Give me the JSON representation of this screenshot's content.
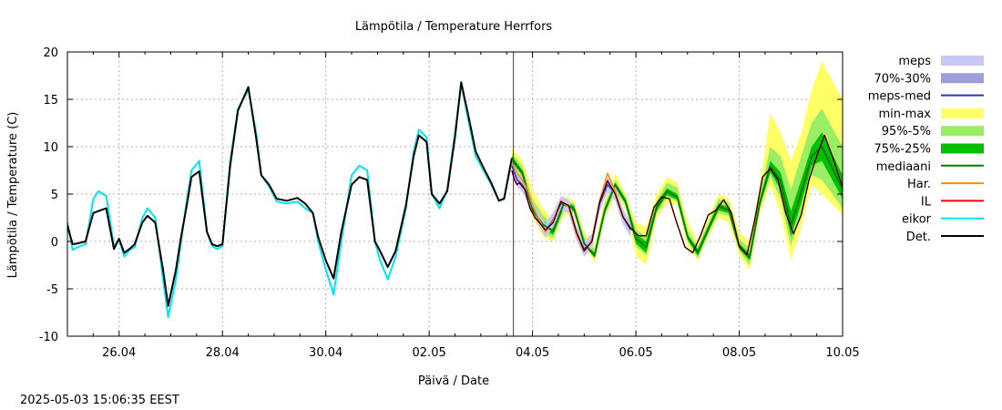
{
  "chart_data": {
    "type": "line",
    "title": "Lämpötila / Temperature   Herrfors",
    "xlabel": "Päivä / Date",
    "ylabel": "Lämpötila / Temperature (C)",
    "timestamp": "2025-05-03 15:06:35 EEST",
    "x_unit": "day of month (April 25 = 25, May 1 = 31)",
    "xlim": [
      25,
      40
    ],
    "ylim": [
      -10,
      20
    ],
    "y_ticks": [
      -10,
      -5,
      0,
      5,
      10,
      15,
      20
    ],
    "x_ticks": [
      {
        "x": 26,
        "label": "26.04"
      },
      {
        "x": 28,
        "label": "28.04"
      },
      {
        "x": 30,
        "label": "30.04"
      },
      {
        "x": 32,
        "label": "02.05"
      },
      {
        "x": 34,
        "label": "04.05"
      },
      {
        "x": 36,
        "label": "06.05"
      },
      {
        "x": 38,
        "label": "08.05"
      },
      {
        "x": 40,
        "label": "10.05"
      }
    ],
    "grid": true,
    "legend_position": "right",
    "forecast_start_x": 33.63,
    "legend": [
      {
        "label": "meps",
        "kind": "band",
        "color": "#c8c8f5"
      },
      {
        "label": "70%-30%",
        "kind": "band",
        "color": "#9e9edc"
      },
      {
        "label": "meps-med",
        "kind": "line",
        "color": "#3030d0"
      },
      {
        "label": "min-max",
        "kind": "band",
        "color": "#ffff66"
      },
      {
        "label": "95%-5%",
        "kind": "band",
        "color": "#99ee66"
      },
      {
        "label": "75%-25%",
        "kind": "band",
        "color": "#00c000"
      },
      {
        "label": "mediaani",
        "kind": "line",
        "color": "#008000"
      },
      {
        "label": "Har.",
        "kind": "line",
        "color": "#ff8c00"
      },
      {
        "label": "IL",
        "kind": "line",
        "color": "#ff0000"
      },
      {
        "label": "eikor",
        "kind": "line",
        "color": "#00e5ee"
      },
      {
        "label": "Det.",
        "kind": "line",
        "color": "#000000"
      }
    ],
    "series": {
      "eikor": {
        "x": [
          25.0,
          25.1,
          25.2,
          25.35,
          25.5,
          25.6,
          25.75,
          25.9,
          26.0,
          26.1,
          26.2,
          26.3,
          26.45,
          26.55,
          26.7,
          26.85,
          26.95,
          27.1,
          27.2,
          27.3,
          27.4,
          27.55,
          27.7,
          27.8,
          27.9,
          28.0,
          28.15,
          28.3,
          28.5,
          28.65,
          28.75,
          28.9,
          29.05,
          29.25,
          29.45,
          29.6,
          29.75,
          29.85,
          30.0,
          30.15,
          30.3,
          30.5,
          30.65,
          30.8,
          30.95,
          31.05,
          31.2,
          31.35,
          31.55,
          31.7,
          31.8,
          31.95,
          32.05,
          32.2,
          32.35,
          32.5,
          32.62,
          32.75,
          32.9,
          33.05,
          33.2,
          33.35,
          33.45,
          33.6
        ],
        "y": [
          2.0,
          -0.9,
          -0.6,
          -0.3,
          4.5,
          5.3,
          4.8,
          -0.5,
          0.2,
          -1.6,
          -0.9,
          -0.6,
          2.5,
          3.5,
          2.5,
          -4.0,
          -8.0,
          -4.0,
          0.0,
          4.0,
          7.5,
          8.5,
          1.0,
          -0.5,
          -0.8,
          -0.5,
          8.5,
          14.0,
          16.0,
          11.5,
          7.0,
          5.8,
          4.2,
          4.0,
          4.2,
          3.5,
          3.0,
          0.0,
          -3.0,
          -5.6,
          0.0,
          7.0,
          8.0,
          7.5,
          0.0,
          -2.0,
          -4.0,
          -1.6,
          3.5,
          9.5,
          11.8,
          11.0,
          5.0,
          3.5,
          5.5,
          11.5,
          16.6,
          13.0,
          9.0,
          7.5,
          6.0,
          4.3,
          4.6,
          8.5
        ]
      },
      "det": {
        "x": [
          25.0,
          25.1,
          25.2,
          25.35,
          25.5,
          25.6,
          25.75,
          25.9,
          26.0,
          26.1,
          26.2,
          26.3,
          26.45,
          26.55,
          26.7,
          26.85,
          26.95,
          27.1,
          27.2,
          27.3,
          27.4,
          27.55,
          27.7,
          27.8,
          27.9,
          28.0,
          28.15,
          28.3,
          28.5,
          28.65,
          28.75,
          28.9,
          29.05,
          29.25,
          29.45,
          29.6,
          29.75,
          29.85,
          30.0,
          30.15,
          30.3,
          30.5,
          30.65,
          30.8,
          30.95,
          31.05,
          31.2,
          31.35,
          31.55,
          31.7,
          31.8,
          31.95,
          32.05,
          32.2,
          32.35,
          32.5,
          32.62,
          32.75,
          32.9,
          33.05,
          33.2,
          33.35,
          33.45,
          33.6
        ],
        "y": [
          1.7,
          -0.3,
          -0.2,
          0.0,
          3.0,
          3.2,
          3.5,
          -0.8,
          0.3,
          -1.2,
          -0.8,
          -0.3,
          2.0,
          2.7,
          2.0,
          -3.0,
          -6.8,
          -3.0,
          0.5,
          3.5,
          6.8,
          7.4,
          1.0,
          -0.3,
          -0.5,
          -0.3,
          8.0,
          13.8,
          16.3,
          11.0,
          7.0,
          6.0,
          4.5,
          4.3,
          4.6,
          4.0,
          3.0,
          0.5,
          -2.0,
          -3.9,
          1.0,
          6.0,
          6.8,
          6.5,
          0.0,
          -1.0,
          -2.7,
          -1.0,
          3.8,
          9.0,
          11.2,
          10.5,
          5.0,
          4.0,
          5.3,
          11.0,
          16.8,
          13.5,
          9.5,
          7.8,
          6.2,
          4.3,
          4.5,
          8.8
        ]
      },
      "minmax_hi": [
        9.8,
        8.6,
        5.5,
        3.5,
        2.2,
        4.8,
        4.3,
        1.0,
        -0.3,
        4.5,
        7.2,
        5.0,
        2.0,
        1.5,
        5.0,
        6.8,
        6.2,
        2.0,
        0.0,
        2.5,
        5.0,
        4.5,
        1.0,
        0.0,
        6.0,
        13.5,
        11.5,
        8.5,
        11.5,
        16.0,
        19.0,
        15.0
      ],
      "minmax_lo": [
        7.5,
        6.5,
        2.5,
        0.5,
        0.0,
        2.8,
        2.8,
        -0.5,
        -2.2,
        2.5,
        4.8,
        3.5,
        -1.5,
        -2.5,
        2.5,
        4.0,
        3.8,
        -0.5,
        -2.0,
        0.5,
        2.5,
        2.0,
        -1.5,
        -3.0,
        3.0,
        6.0,
        3.0,
        -2.0,
        1.5,
        6.0,
        5.0,
        2.8
      ],
      "p95_hi": [
        9.3,
        8.0,
        4.5,
        2.8,
        1.8,
        4.5,
        4.0,
        0.5,
        -0.8,
        4.0,
        6.5,
        4.7,
        1.3,
        0.5,
        4.3,
        6.2,
        5.7,
        1.2,
        -0.5,
        2.0,
        4.5,
        4.1,
        0.3,
        -0.8,
        5.0,
        10.0,
        9.0,
        5.5,
        9.0,
        12.5,
        14.0,
        10.0
      ],
      "p95_lo": [
        8.0,
        6.8,
        2.8,
        1.0,
        0.3,
        3.2,
        3.0,
        -0.2,
        -1.8,
        2.8,
        5.3,
        3.8,
        -0.5,
        -1.5,
        3.0,
        4.6,
        4.2,
        0.0,
        -1.8,
        0.8,
        3.0,
        2.7,
        -1.0,
        -2.5,
        3.5,
        6.8,
        4.5,
        -0.5,
        3.0,
        7.0,
        6.5,
        3.5
      ],
      "p75_hi": [
        9.0,
        7.5,
        3.8,
        2.2,
        1.5,
        4.2,
        3.8,
        0.0,
        -1.2,
        3.5,
        6.2,
        4.5,
        0.8,
        0.0,
        4.0,
        5.6,
        5.0,
        0.7,
        -0.8,
        1.6,
        4.0,
        3.6,
        -0.2,
        -1.3,
        4.5,
        8.5,
        7.3,
        3.2,
        6.5,
        10.0,
        11.5,
        7.0
      ],
      "p75_lo": [
        8.4,
        7.0,
        3.0,
        1.4,
        0.7,
        3.5,
        3.2,
        -0.4,
        -1.7,
        3.0,
        5.7,
        4.0,
        -0.2,
        -1.2,
        3.2,
        4.9,
        4.4,
        0.2,
        -1.5,
        1.0,
        3.3,
        3.0,
        -0.8,
        -2.0,
        3.8,
        7.3,
        5.5,
        0.5,
        4.0,
        8.0,
        8.5,
        4.5
      ],
      "mediaani": [
        8.7,
        7.3,
        3.3,
        1.8,
        1.1,
        3.9,
        3.5,
        -0.2,
        -1.5,
        3.3,
        6.0,
        4.2,
        0.3,
        -0.6,
        3.6,
        5.3,
        4.7,
        0.5,
        -1.2,
        1.3,
        3.7,
        3.3,
        -0.5,
        -1.7,
        4.1,
        7.9,
        6.4,
        1.7,
        5.2,
        9.0,
        10.0,
        5.5
      ],
      "il": {
        "x": [
          33.6,
          33.65,
          33.7,
          33.75,
          33.8,
          33.85,
          33.9,
          33.95,
          34.0,
          34.05,
          34.1,
          34.25,
          34.4,
          34.55,
          34.7,
          34.85,
          35.0,
          35.15,
          35.3,
          35.45,
          35.6,
          35.75,
          35.9,
          36.05,
          36.2,
          36.35,
          36.5,
          36.65,
          36.8,
          36.95,
          37.1,
          37.25,
          37.4,
          37.55,
          37.7,
          37.85,
          38.0,
          38.15,
          38.3,
          38.45,
          38.6,
          38.75,
          38.9,
          39.05,
          39.2,
          39.35,
          39.5,
          39.65,
          39.8,
          39.95,
          40.0
        ],
        "y": [
          7.5,
          6.5,
          6.0,
          6.2,
          5.8,
          5.5,
          4.5,
          3.5,
          3.0,
          2.5,
          2.2,
          1.2,
          2.0,
          4.2,
          3.8,
          1.0,
          -1.0,
          0.0,
          4.2,
          6.4,
          5.0,
          2.6,
          1.4,
          0.6,
          0.6,
          3.6,
          4.7,
          4.5,
          1.8,
          -0.6,
          -1.2,
          0.6,
          2.8,
          3.3,
          4.4,
          3.0,
          -0.5,
          -1.4,
          2.3,
          6.8,
          7.7,
          6.5,
          3.0,
          0.8,
          2.8,
          6.5,
          9.0,
          11.2,
          9.0,
          6.5,
          5.8
        ]
      },
      "har": {
        "x": [
          33.6,
          33.7,
          33.8,
          33.9,
          34.0,
          34.1,
          34.25,
          34.4,
          34.55,
          34.7,
          34.85,
          35.0,
          35.15,
          35.3,
          35.45,
          35.6,
          35.75
        ],
        "y": [
          8.3,
          7.2,
          6.5,
          5.5,
          3.8,
          2.6,
          1.0,
          2.2,
          4.3,
          3.6,
          0.8,
          -1.1,
          0.2,
          4.3,
          7.2,
          5.3,
          2.5
        ]
      },
      "meps_med": {
        "x": [
          33.6,
          33.7,
          33.8,
          33.9,
          34.0,
          34.1,
          34.25,
          34.4,
          34.55,
          34.7,
          34.85,
          35.0,
          35.15,
          35.3,
          35.45,
          35.6,
          35.75,
          35.9
        ],
        "y": [
          8.0,
          6.5,
          6.0,
          5.0,
          3.5,
          2.5,
          1.1,
          2.3,
          4.0,
          3.7,
          0.9,
          -0.8,
          0.0,
          4.0,
          6.0,
          5.1,
          2.6,
          1.2
        ]
      },
      "meps_band_hi": [
        8.6,
        7.3,
        6.8,
        5.8,
        4.3,
        3.2,
        1.9,
        3.1,
        4.8,
        4.4,
        1.7,
        0.0,
        0.8,
        4.8,
        6.8,
        5.9,
        3.4,
        2.0
      ],
      "meps_band_lo": [
        7.4,
        5.8,
        5.2,
        4.2,
        2.8,
        1.8,
        0.4,
        1.5,
        3.2,
        3.0,
        0.1,
        -1.6,
        -0.8,
        3.2,
        5.2,
        4.3,
        1.8,
        0.4
      ]
    }
  }
}
